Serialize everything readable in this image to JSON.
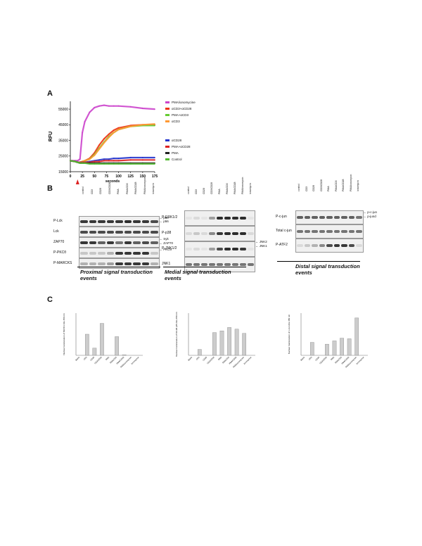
{
  "panel_a": {
    "letter": "A",
    "ylabel": "RFU",
    "xlabel": "seconds",
    "y_ticks": [
      "55000",
      "45000",
      "35000",
      "25000",
      "15000"
    ],
    "x_ticks": [
      "0",
      "25",
      "50",
      "75",
      "100",
      "125",
      "150",
      "175"
    ],
    "legend_top": [
      {
        "name": "PMA/ionomycine",
        "color": "#cc44cc"
      },
      {
        "name": "αCD3+αCD28",
        "color": "#ee3311"
      },
      {
        "name": "PMA+αCD3",
        "color": "#66cc33"
      },
      {
        "name": "αCD3",
        "color": "#ff9933"
      }
    ],
    "legend_bottom": [
      {
        "name": "αCD28",
        "color": "#2233cc"
      },
      {
        "name": "PMA+αCD28",
        "color": "#dd2222"
      },
      {
        "name": "PMA",
        "color": "#222222"
      },
      {
        "name": "Control",
        "color": "#55bb33"
      }
    ]
  },
  "chart_data": {
    "type": "line",
    "xlabel": "seconds",
    "ylabel": "RFU",
    "xlim": [
      0,
      175
    ],
    "ylim": [
      15000,
      60000
    ],
    "x": [
      0,
      10,
      15,
      20,
      25,
      30,
      40,
      50,
      60,
      70,
      80,
      90,
      100,
      125,
      150,
      175
    ],
    "series": [
      {
        "name": "PMA/ionomycine",
        "values": [
          22000,
          22000,
          22000,
          23000,
          40000,
          47000,
          53000,
          56000,
          57000,
          57500,
          57000,
          57000,
          57000,
          56500,
          55500,
          55000
        ]
      },
      {
        "name": "αCD3+αCD28",
        "values": [
          22000,
          21500,
          21000,
          21000,
          21500,
          22000,
          23500,
          27000,
          32000,
          36000,
          39000,
          41500,
          43000,
          44500,
          45000,
          45000
        ]
      },
      {
        "name": "PMA+αCD3",
        "values": [
          22000,
          21500,
          21000,
          21000,
          21500,
          22000,
          23000,
          26000,
          30000,
          34000,
          37500,
          40000,
          42000,
          44000,
          44500,
          44500
        ]
      },
      {
        "name": "αCD3",
        "values": [
          22000,
          21500,
          21000,
          21000,
          21500,
          22000,
          23000,
          25500,
          29500,
          33500,
          37000,
          40000,
          42000,
          44000,
          45000,
          45500
        ]
      },
      {
        "name": "αCD28",
        "values": [
          22000,
          21500,
          21000,
          21000,
          21000,
          21000,
          21500,
          22000,
          22500,
          23000,
          23000,
          23500,
          23500,
          24000,
          24000,
          24000
        ]
      },
      {
        "name": "PMA+αCD28",
        "values": [
          22000,
          21500,
          21000,
          21000,
          21000,
          21000,
          21000,
          21500,
          21500,
          22000,
          22000,
          22000,
          22000,
          22500,
          22500,
          22500
        ]
      },
      {
        "name": "PMA",
        "values": [
          22000,
          21500,
          21000,
          20500,
          20500,
          20500,
          20500,
          20500,
          20500,
          20500,
          20500,
          20500,
          20500,
          20500,
          20500,
          20500
        ]
      },
      {
        "name": "Control",
        "values": [
          22000,
          21500,
          21000,
          20500,
          20500,
          20500,
          20000,
          20000,
          20000,
          20000,
          20000,
          20000,
          20000,
          20000,
          20000,
          20000
        ]
      }
    ]
  },
  "panel_b": {
    "letter": "B",
    "proximal": {
      "lanes": [
        "control",
        "CD3",
        "CD28",
        "CD3/CD28",
        "PMA",
        "PMA/CD3",
        "PMA/CD28",
        "PMA/ionomycin",
        "ionomycin"
      ],
      "rows": [
        "P-Lck",
        "Lck",
        "ZAP70",
        "P-PKCθ",
        "P-MARCKS"
      ],
      "markers": [
        "p60",
        "p56",
        "Syk",
        "ZAP70",
        "PKCθ"
      ],
      "title": "Proximal signal transduction events"
    },
    "medial": {
      "lanes": [
        "control",
        "CD3",
        "CD28",
        "CD3/CD28",
        "PMA",
        "PMA/CD3",
        "PMA/CD28",
        "PMA/ionomycin",
        "ionomycin"
      ],
      "rows": [
        "P-ERK1/2",
        "P-p38",
        "P-JNK1/2",
        "JNK1"
      ],
      "markers": [
        "JNK2",
        "JNK1"
      ],
      "title": "Medial signal transduction events"
    },
    "distal": {
      "lanes": [
        "control",
        "CD3",
        "CD28",
        "CD3/CD28",
        "PMA",
        "PMA/CD3",
        "PMA/CD28",
        "PMA/ionomycin",
        "ionomycin"
      ],
      "rows": [
        "P-c-jun",
        "Total c-jun",
        "P-ATF2"
      ],
      "markers": [
        "p-c-jun",
        "p-jund"
      ],
      "title": "Distal signal transduction events"
    }
  },
  "panel_c": {
    "letter": "C",
    "charts": [
      {
        "ylabel": "Nuclear translocation of NFATc1 Abs 450 nm",
        "ymax": 0.7,
        "categories": [
          "Blank",
          "CD3",
          "CD28",
          "CD3/CD28",
          "PMA",
          "PMA/CD3",
          "PMA/CD28",
          "PMA/ionomycine",
          "Ionomycine"
        ],
        "values": [
          0,
          0.35,
          0.12,
          0.53,
          0,
          0.31,
          0.01,
          0,
          0
        ]
      },
      {
        "ylabel": "Nuclear translocation of NF-kB p65 Abs 450 nm",
        "ymax": 0.5,
        "categories": [
          "Blank",
          "CD3",
          "CD28",
          "CD3/CD28",
          "PMA",
          "PMA/CD3",
          "PMA/CD28",
          "PMA/ionomycine",
          "Ionomycine"
        ],
        "values": [
          0,
          0.07,
          0,
          0.27,
          0.29,
          0.33,
          0.31,
          0.26,
          0
        ]
      },
      {
        "ylabel": "Nuclear translocation of c-Jun Abs 450 nm",
        "ymax": 1.4,
        "categories": [
          "Blank",
          "CD3",
          "CD28",
          "CD3/CD28",
          "PMA",
          "PMA/CD3",
          "PMA/CD28",
          "PMA/ionomycine",
          "Ionomycine"
        ],
        "values": [
          0,
          0.43,
          0,
          0.37,
          0.48,
          0.57,
          0.55,
          1.24,
          0
        ]
      }
    ]
  }
}
